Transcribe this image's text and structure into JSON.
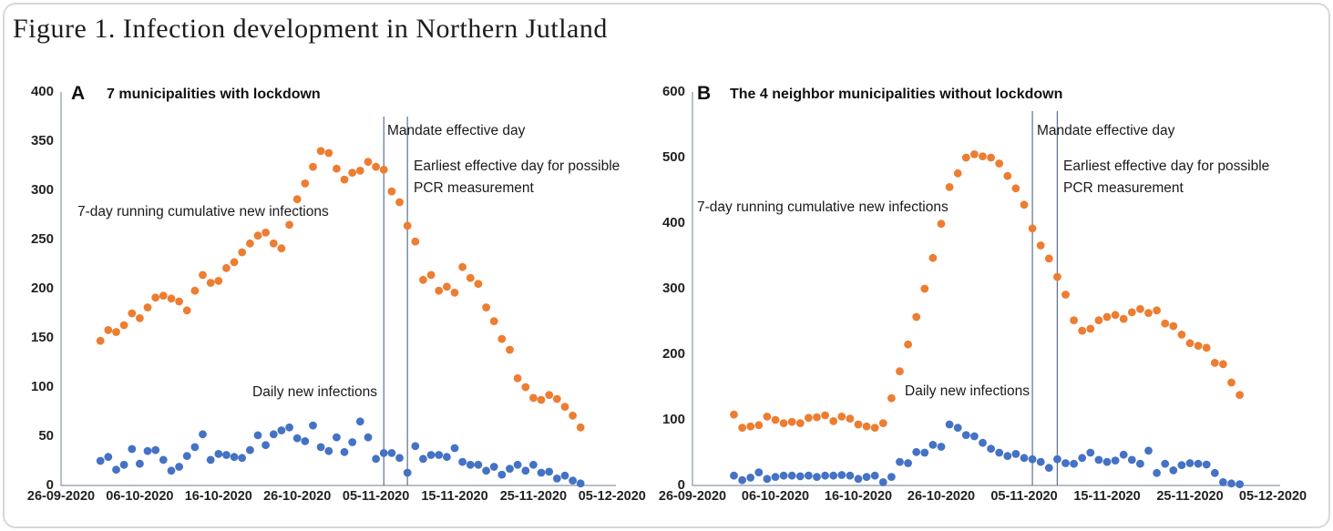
{
  "figure_title": "Figure 1. Infection development in Northern Jutland",
  "colors": {
    "cumulative_series": "#ED7D31",
    "daily_series": "#4472C4",
    "event_line": "#5E718D",
    "axis_line": "#9FA8B8",
    "text": "#1A1A1A"
  },
  "chart_data": [
    {
      "type": "scatter",
      "panel_label": "A",
      "title": "7 municipalities with lockdown",
      "x_axis": {
        "tick_labels": [
          "26-09-2020",
          "06-10-2020",
          "16-10-2020",
          "26-10-2020",
          "05-11-2020",
          "15-11-2020",
          "25-11-2020",
          "05-12-2020"
        ],
        "tick_day_offsets": [
          0,
          10,
          20,
          30,
          40,
          50,
          60,
          70
        ]
      },
      "y_axis": {
        "min": 0,
        "max": 400,
        "tick_values": [
          0,
          50,
          100,
          150,
          200,
          250,
          300,
          350,
          400
        ]
      },
      "start_day_offset": 5,
      "grid": false,
      "legend": "in-plot text labels",
      "series": [
        {
          "name": "7-day running cumulative new infections",
          "color": "#ED7D31",
          "values": [
            147,
            158,
            156,
            163,
            175,
            170,
            181,
            191,
            193,
            190,
            187,
            178,
            198,
            214,
            206,
            208,
            221,
            227,
            237,
            246,
            254,
            257,
            246,
            241,
            265,
            291,
            307,
            324,
            340,
            338,
            322,
            311,
            318,
            320,
            329,
            324,
            321,
            299,
            288,
            264,
            248,
            209,
            214,
            198,
            202,
            196,
            222,
            211,
            205,
            181,
            167,
            149,
            138,
            109,
            100,
            89,
            87,
            92,
            88,
            80,
            71,
            59
          ]
        },
        {
          "name": "Daily new infections",
          "color": "#4472C4",
          "values": [
            25,
            29,
            16,
            21,
            37,
            22,
            35,
            36,
            26,
            15,
            19,
            30,
            39,
            52,
            26,
            32,
            31,
            29,
            28,
            36,
            51,
            41,
            52,
            56,
            59,
            48,
            45,
            61,
            39,
            35,
            49,
            34,
            44,
            65,
            49,
            27,
            33,
            33,
            28,
            13,
            40,
            27,
            31,
            31,
            29,
            38,
            24,
            21,
            21,
            15,
            19,
            11,
            17,
            21,
            15,
            21,
            13,
            14,
            7,
            10,
            5,
            2
          ]
        }
      ],
      "event_lines": [
        {
          "label": "Mandate effective day",
          "day_offset": 41
        },
        {
          "label": "Earliest effective day for possible PCR measurement",
          "day_offset": 44
        }
      ]
    },
    {
      "type": "scatter",
      "panel_label": "B",
      "title": "The 4 neighbor municipalities without lockdown",
      "x_axis": {
        "tick_labels": [
          "26-09-2020",
          "06-10-2020",
          "16-10-2020",
          "26-10-2020",
          "05-11-2020",
          "15-11-2020",
          "25-11-2020",
          "05-12-2020"
        ],
        "tick_day_offsets": [
          0,
          10,
          20,
          30,
          40,
          50,
          60,
          70
        ]
      },
      "y_axis": {
        "min": 0,
        "max": 600,
        "tick_values": [
          0,
          100,
          200,
          300,
          400,
          500,
          600
        ]
      },
      "start_day_offset": 5,
      "grid": false,
      "legend": "in-plot text labels",
      "series": [
        {
          "name": "7-day running cumulative new infections",
          "color": "#ED7D31",
          "values": [
            108,
            88,
            90,
            92,
            105,
            100,
            95,
            97,
            95,
            103,
            104,
            107,
            98,
            105,
            102,
            93,
            90,
            88,
            95,
            133,
            174,
            215,
            257,
            300,
            347,
            399,
            455,
            476,
            500,
            505,
            502,
            500,
            491,
            472,
            453,
            428,
            392,
            366,
            346,
            318,
            291,
            252,
            236,
            239,
            252,
            257,
            260,
            254,
            264,
            269,
            263,
            267,
            247,
            243,
            230,
            217,
            213,
            210,
            187,
            185,
            157,
            138
          ]
        },
        {
          "name": "Daily new infections",
          "color": "#4472C4",
          "values": [
            15,
            8,
            12,
            20,
            10,
            13,
            15,
            15,
            14,
            15,
            13,
            15,
            15,
            16,
            15,
            10,
            13,
            15,
            5,
            13,
            36,
            34,
            51,
            50,
            62,
            59,
            93,
            88,
            77,
            75,
            65,
            56,
            50,
            45,
            48,
            42,
            40,
            36,
            27,
            40,
            34,
            33,
            42,
            50,
            39,
            36,
            38,
            47,
            39,
            33,
            53,
            19,
            33,
            23,
            31,
            34,
            33,
            32,
            19,
            5,
            3,
            2
          ]
        }
      ],
      "event_lines": [
        {
          "label": "Mandate effective day",
          "day_offset": 41
        },
        {
          "label": "Earliest effective day for possible PCR measurement",
          "day_offset": 44
        }
      ]
    }
  ]
}
